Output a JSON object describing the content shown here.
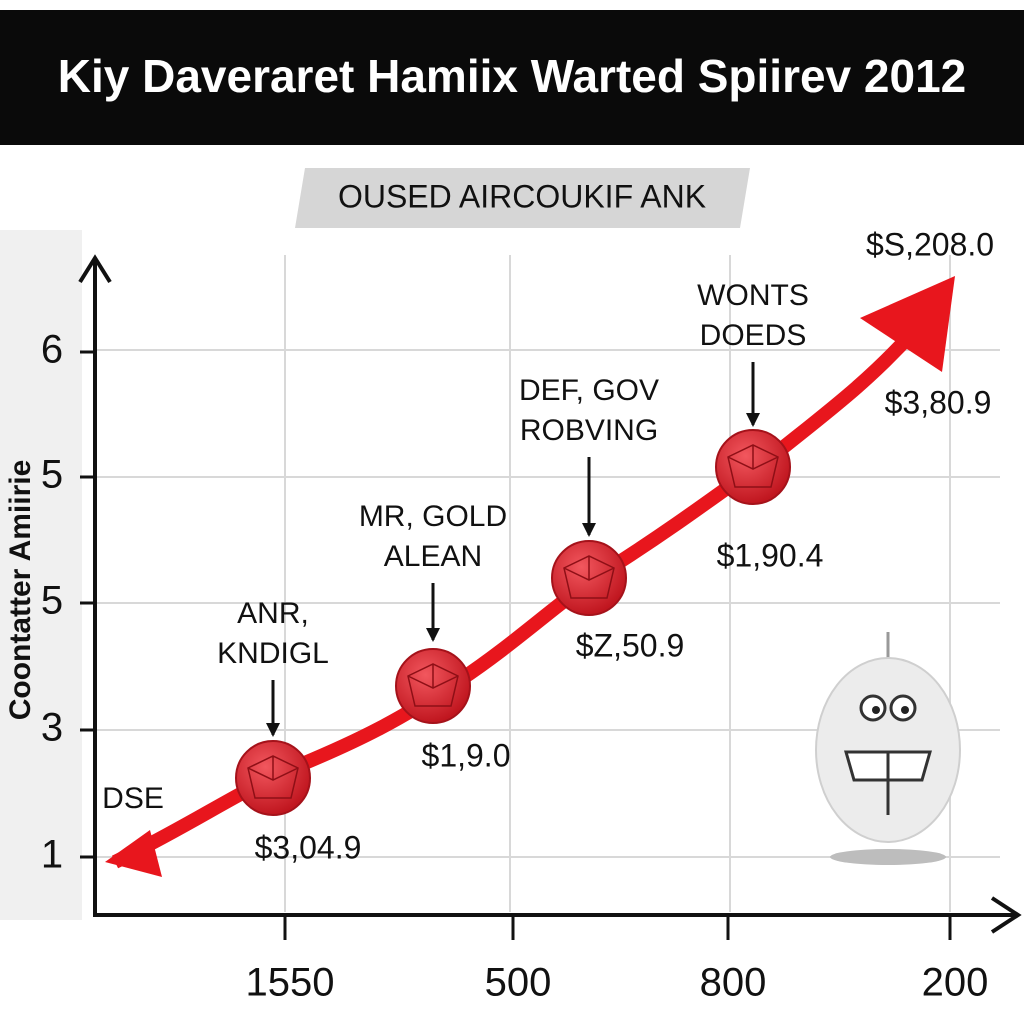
{
  "header": {
    "title": "Kiy Daveraret Hamiix Warted Spiirev 2012"
  },
  "subtitle": "OUSED AIRCOUKIF ANK",
  "y_axis": {
    "label": "Coontatter Amiirie",
    "ticks": [
      "6",
      "5",
      "5",
      "3",
      "1"
    ]
  },
  "x_axis": {
    "ticks": [
      "1550",
      "500",
      "800",
      "200"
    ]
  },
  "start_label": "DSE",
  "points": [
    {
      "lines": [
        "ANR,",
        "KNDIGL"
      ],
      "value_label": "$3,04.9"
    },
    {
      "lines": [
        "MR, GOLD",
        "ALEAN"
      ],
      "value_label": "$1,9.0"
    },
    {
      "lines": [
        "DEF, GOV",
        "ROBVING"
      ],
      "value_label": "$Z,50.9"
    },
    {
      "lines": [
        "WONTS",
        "DOEDS"
      ],
      "value_label": "$1,90.4"
    }
  ],
  "end_labels": [
    "$S,208.0",
    "$3,80.9"
  ]
}
